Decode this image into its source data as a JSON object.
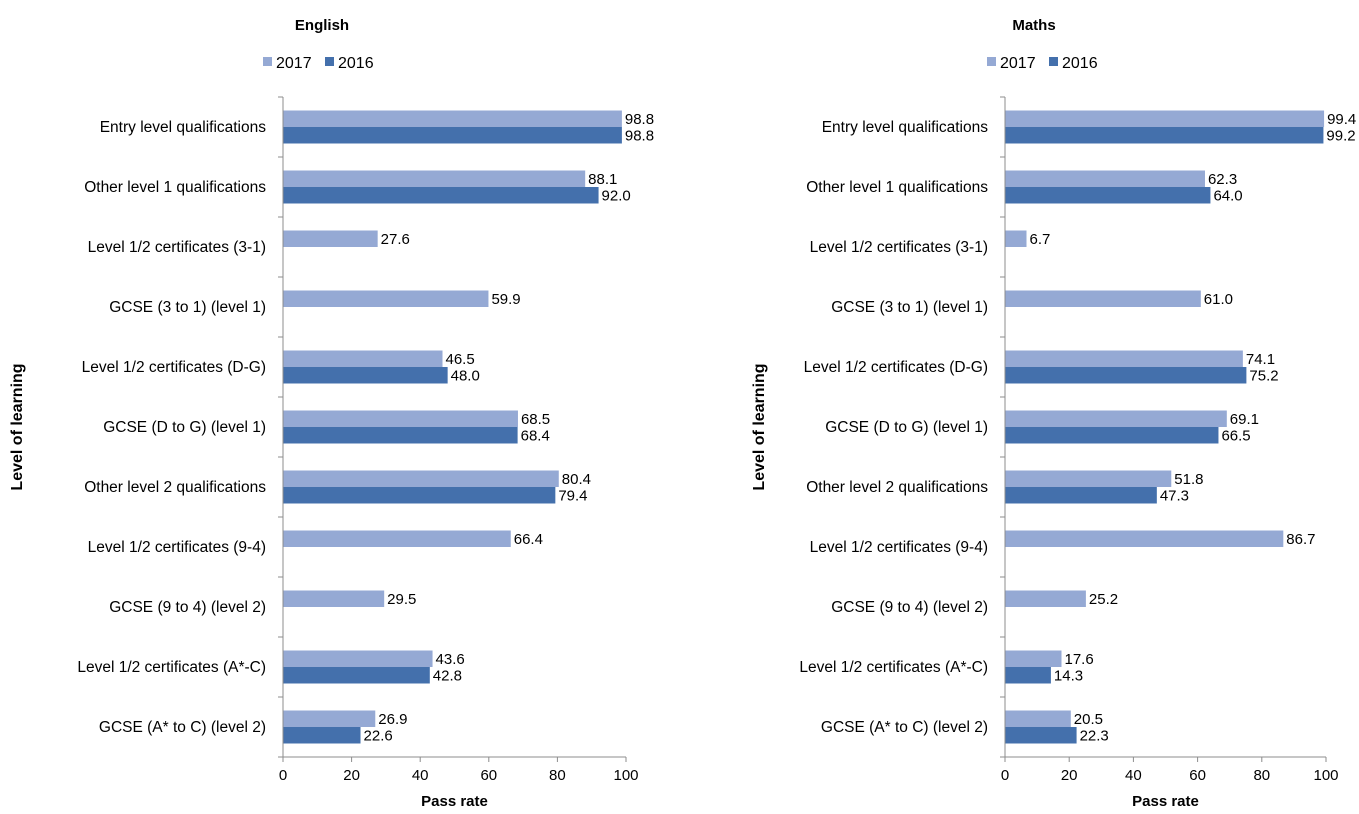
{
  "colors": {
    "series_2017": "#95a9d4",
    "series_2016": "#4470ac",
    "axis": "#8c8c8c",
    "text": "#000000"
  },
  "chart_data": [
    {
      "type": "bar",
      "orientation": "horizontal",
      "title": "English",
      "xlabel": "Pass rate",
      "ylabel": "Level of learning",
      "xlim": [
        0,
        100
      ],
      "xticks": [
        "0",
        "20",
        "40",
        "60",
        "80",
        "100"
      ],
      "grid": false,
      "legend_position": "top",
      "categories": [
        "Entry level qualifications",
        "Other level 1 qualifications",
        "Level 1/2 certificates (3-1)",
        "GCSE (3 to 1) (level 1)",
        "Level 1/2 certificates (D-G)",
        "GCSE (D to G) (level 1)",
        "Other level 2 qualifications",
        "Level 1/2 certificates (9-4)",
        "GCSE (9 to 4) (level 2)",
        "Level 1/2 certificates (A*-C)",
        "GCSE (A* to C) (level 2)"
      ],
      "series": [
        {
          "name": "2017",
          "values": [
            98.8,
            88.1,
            27.6,
            59.9,
            46.5,
            68.5,
            80.4,
            66.4,
            29.5,
            43.6,
            26.9
          ],
          "labels": [
            "98.8",
            "88.1",
            "27.6",
            "59.9",
            "46.5",
            "68.5",
            "80.4",
            "66.4",
            "29.5",
            "43.6",
            "26.9"
          ]
        },
        {
          "name": "2016",
          "values": [
            98.8,
            92.0,
            null,
            null,
            48.0,
            68.4,
            79.4,
            null,
            null,
            42.8,
            22.6
          ],
          "labels": [
            "98.8",
            "92.0",
            null,
            null,
            "48.0",
            "68.4",
            "79.4",
            null,
            null,
            "42.8",
            "22.6"
          ]
        }
      ]
    },
    {
      "type": "bar",
      "orientation": "horizontal",
      "title": "Maths",
      "xlabel": "Pass rate",
      "ylabel": "Level of learning",
      "xlim": [
        0,
        100
      ],
      "xticks": [
        "0",
        "20",
        "40",
        "60",
        "80",
        "100"
      ],
      "grid": false,
      "legend_position": "top",
      "categories": [
        "Entry level qualifications",
        "Other level 1 qualifications",
        "Level 1/2 certificates (3-1)",
        "GCSE (3 to 1) (level 1)",
        "Level 1/2 certificates (D-G)",
        "GCSE (D to G) (level 1)",
        "Other level 2 qualifications",
        "Level 1/2 certificates (9-4)",
        "GCSE (9 to 4) (level 2)",
        "Level 1/2 certificates (A*-C)",
        "GCSE (A* to C) (level 2)"
      ],
      "series": [
        {
          "name": "2017",
          "values": [
            99.4,
            62.3,
            6.7,
            61.0,
            74.1,
            69.1,
            51.8,
            86.7,
            25.2,
            17.6,
            20.5
          ],
          "labels": [
            "99.4",
            "62.3",
            "6.7",
            "61.0",
            "74.1",
            "69.1",
            "51.8",
            "86.7",
            "25.2",
            "17.6",
            "20.5"
          ]
        },
        {
          "name": "2016",
          "values": [
            99.2,
            64.0,
            null,
            null,
            75.2,
            66.5,
            47.3,
            null,
            null,
            14.3,
            22.3
          ],
          "labels": [
            "99.2",
            "64.0",
            null,
            null,
            "75.2",
            "66.5",
            "47.3",
            null,
            null,
            "14.3",
            "22.3"
          ]
        }
      ]
    }
  ]
}
